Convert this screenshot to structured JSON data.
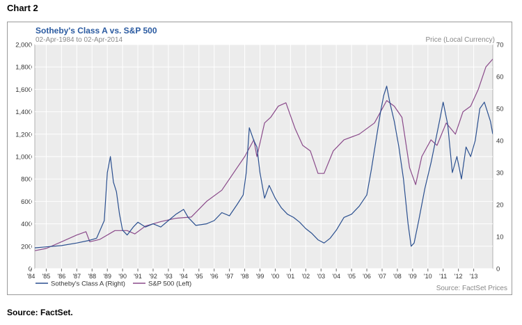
{
  "figure_title": "Chart 2",
  "footer_source": "Source: FactSet.",
  "chart_data": {
    "type": "line",
    "title": "Sotheby's Class A vs. S&P 500",
    "subtitle": "02-Apr-1984 to 02-Apr-2014",
    "right_axis_title": "Price (Local Currency)",
    "source_label": "Source: FactSet Prices",
    "x_tick_labels": [
      "'84",
      "'85",
      "'86",
      "'87",
      "'88",
      "'89",
      "'90",
      "'91",
      "'92",
      "'93",
      "'94",
      "'95",
      "'96",
      "'97",
      "'98",
      "'99",
      "'00",
      "'01",
      "'02",
      "'03",
      "'04",
      "'05",
      "'06",
      "'07",
      "'08",
      "'09",
      "'10",
      "'11",
      "'12",
      "'13"
    ],
    "x_tick_years": [
      1984,
      1985,
      1986,
      1987,
      1988,
      1989,
      1990,
      1991,
      1992,
      1993,
      1994,
      1995,
      1996,
      1997,
      1998,
      1999,
      2000,
      2001,
      2002,
      2003,
      2004,
      2005,
      2006,
      2007,
      2008,
      2009,
      2010,
      2011,
      2012,
      2013
    ],
    "xlim": [
      1984.25,
      2014.25
    ],
    "left_axis": {
      "ylim": [
        0,
        2000
      ],
      "ticks": [
        0,
        200,
        400,
        600,
        800,
        1000,
        1200,
        1400,
        1600,
        1800,
        2000
      ],
      "tick_labels": [
        "0",
        "200",
        "400",
        "600",
        "800",
        "1,000",
        "1,200",
        "1,400",
        "1,600",
        "1,800",
        "2,000"
      ]
    },
    "right_axis": {
      "ylim": [
        0,
        70
      ],
      "ticks": [
        0,
        10,
        20,
        30,
        40,
        50,
        60,
        70
      ],
      "tick_labels": [
        "0",
        "10",
        "20",
        "30",
        "40",
        "50",
        "60",
        "70"
      ]
    },
    "grid": true,
    "legend_position": "bottom-left",
    "series": [
      {
        "name": "Sotheby's Class A (Right)",
        "axis": "right",
        "color": "#2a4f8f",
        "x": [
          1984.25,
          1985,
          1986,
          1987,
          1987.8,
          1988.3,
          1988.8,
          1989.0,
          1989.2,
          1989.4,
          1989.6,
          1989.8,
          1990.0,
          1990.3,
          1990.7,
          1991.0,
          1991.5,
          1992,
          1992.5,
          1993,
          1993.5,
          1994.0,
          1994.3,
          1994.8,
          1995.5,
          1996,
          1996.5,
          1997,
          1997.5,
          1997.9,
          1998.1,
          1998.3,
          1998.6,
          1998.8,
          1999.0,
          1999.3,
          1999.6,
          2000.0,
          2000.4,
          2000.8,
          2001.2,
          2001.6,
          2002.0,
          2002.4,
          2002.8,
          2003.2,
          2003.6,
          2004.0,
          2004.5,
          2005.0,
          2005.5,
          2006.0,
          2006.3,
          2006.6,
          2006.9,
          2007.1,
          2007.3,
          2007.5,
          2007.8,
          2008.1,
          2008.4,
          2008.7,
          2008.9,
          2009.1,
          2009.4,
          2009.8,
          2010.2,
          2010.5,
          2010.8,
          2011.0,
          2011.3,
          2011.6,
          2011.9,
          2012.2,
          2012.5,
          2012.8,
          2013.1,
          2013.4,
          2013.7,
          2013.9,
          2014.1,
          2014.25
        ],
        "values": [
          6.5,
          6.8,
          7.2,
          8.0,
          8.8,
          9.5,
          15.0,
          30.0,
          35.0,
          27.0,
          24.0,
          17.0,
          12.0,
          10.5,
          13.0,
          14.5,
          13.0,
          14.0,
          13.0,
          15.0,
          17.0,
          18.5,
          16.0,
          13.5,
          14.0,
          15.0,
          17.5,
          16.5,
          20.0,
          23.0,
          30.0,
          44.0,
          40.0,
          38.0,
          30.0,
          22.0,
          26.0,
          22.0,
          19.0,
          17.0,
          16.0,
          14.5,
          12.5,
          11.0,
          9.0,
          8.0,
          9.5,
          12.0,
          16.0,
          17.0,
          19.5,
          23.0,
          31.0,
          40.0,
          49.0,
          54.0,
          57.0,
          52.0,
          46.0,
          38.0,
          28.0,
          14.0,
          7.0,
          8.0,
          15.0,
          25.0,
          33.0,
          40.0,
          47.0,
          52.0,
          45.0,
          30.0,
          35.0,
          28.0,
          38.0,
          35.0,
          40.0,
          50.0,
          52.0,
          49.0,
          46.0,
          42.0
        ]
      },
      {
        "name": "S&P 500 (Left)",
        "axis": "left",
        "color": "#8a4a8a",
        "x": [
          1984.25,
          1985,
          1986,
          1987.0,
          1987.6,
          1987.85,
          1988.5,
          1989.5,
          1990.3,
          1990.8,
          1991.5,
          1992.5,
          1993.5,
          1994.5,
          1995.5,
          1996.5,
          1997.5,
          1998.0,
          1998.6,
          1998.8,
          1999.3,
          1999.7,
          2000.2,
          2000.7,
          2001.3,
          2001.8,
          2002.3,
          2002.8,
          2003.2,
          2003.8,
          2004.5,
          2005.5,
          2006.5,
          2007.3,
          2007.8,
          2008.3,
          2008.8,
          2009.2,
          2009.6,
          2010.2,
          2010.6,
          2011.2,
          2011.8,
          2012.3,
          2012.8,
          2013.3,
          2013.8,
          2014.25
        ],
        "values": [
          160,
          180,
          240,
          300,
          330,
          240,
          260,
          340,
          340,
          310,
          380,
          420,
          450,
          460,
          600,
          700,
          900,
          1000,
          1150,
          1000,
          1300,
          1350,
          1450,
          1480,
          1250,
          1100,
          1050,
          850,
          850,
          1050,
          1150,
          1200,
          1300,
          1500,
          1450,
          1350,
          900,
          750,
          1000,
          1150,
          1100,
          1300,
          1200,
          1400,
          1450,
          1600,
          1800,
          1870
        ]
      }
    ]
  }
}
